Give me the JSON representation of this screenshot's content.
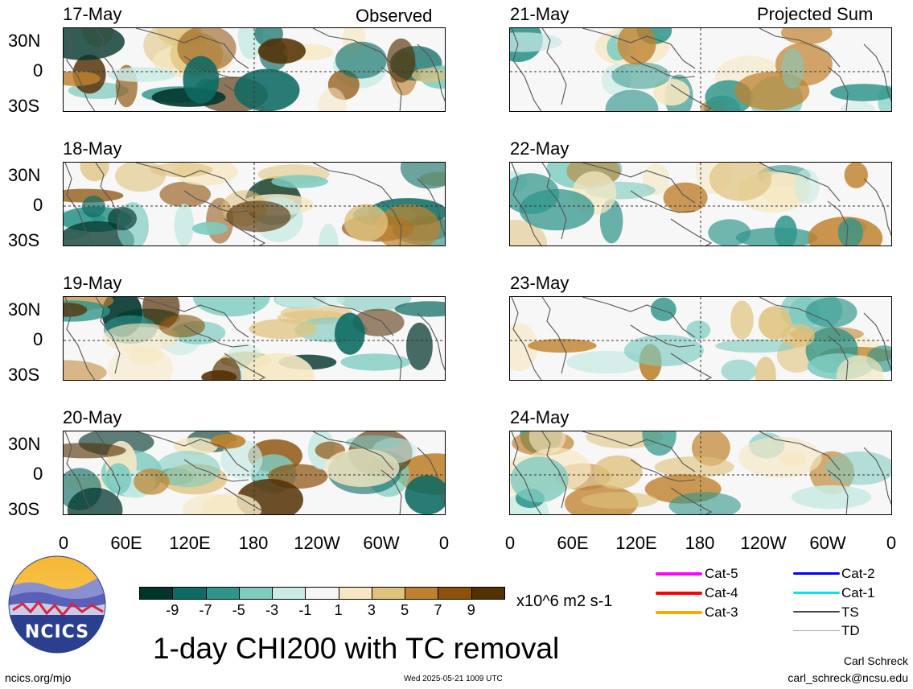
{
  "left_header": "Observed",
  "right_header": "Projected Sum",
  "panels": [
    {
      "date": "17-May"
    },
    {
      "date": "18-May"
    },
    {
      "date": "19-May"
    },
    {
      "date": "20-May"
    },
    {
      "date": "21-May"
    },
    {
      "date": "22-May"
    },
    {
      "date": "23-May"
    },
    {
      "date": "24-May"
    }
  ],
  "lat_labels": [
    "30N",
    "0",
    "30S"
  ],
  "lon_labels": [
    "0",
    "60E",
    "120E",
    "180",
    "120W",
    "60W",
    "0"
  ],
  "colorbar": {
    "colors": [
      "#01352c",
      "#0d6b63",
      "#2f958b",
      "#7ecbc0",
      "#c9ebe4",
      "#f5f5f5",
      "#f6e8c3",
      "#dfc27d",
      "#bf812d",
      "#8c510a",
      "#543005"
    ],
    "tick_labels": [
      "-9",
      "-7",
      "-5",
      "-3",
      "-1",
      "1",
      "3",
      "5",
      "7",
      "9"
    ],
    "units": "x10^6 m2 s-1"
  },
  "title": "1-day CHI200 with TC removal",
  "logo_text": "NCICS",
  "website": "ncics.org/mjo",
  "timestamp": "Wed 2025-05-21 1009 UTC",
  "author": "Carl Schreck",
  "email": "carl_schreck@ncsu.edu",
  "tc_legend": [
    {
      "label": "Cat-5",
      "color": "#ff00ff"
    },
    {
      "label": "Cat-4",
      "color": "#ff0000"
    },
    {
      "label": "Cat-3",
      "color": "#ffa500"
    },
    {
      "label": "Cat-2",
      "color": "#0000ff"
    },
    {
      "label": "Cat-1",
      "color": "#00e5ee"
    },
    {
      "label": "TS",
      "color": "#444444"
    },
    {
      "label": "TD",
      "color": "#aaaaaa"
    }
  ]
}
